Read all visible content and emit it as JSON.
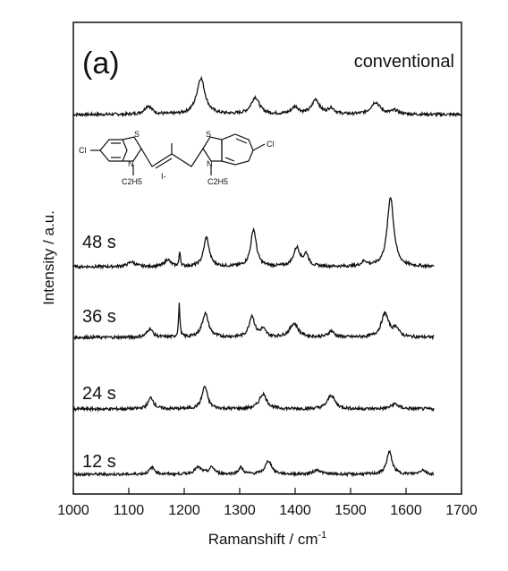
{
  "chart_data": {
    "type": "line",
    "panel_label": "(a)",
    "xlabel": "Ramanshift / cm",
    "xlabel_superscript": "-1",
    "ylabel": "Intensity / a.u.",
    "xlim": [
      1000,
      1700
    ],
    "x_ticks": [
      1000,
      1100,
      1200,
      1300,
      1400,
      1500,
      1600,
      1700
    ],
    "grid": false,
    "structure_labels": [
      "Cl",
      "S",
      "N",
      "C2H5",
      "I-",
      "S",
      "N",
      "C2H5",
      "Cl"
    ],
    "series": [
      {
        "name": "conventional",
        "x_range": [
          1000,
          1700
        ],
        "baseline": 0.0,
        "peaks": [
          [
            1135,
            0.35,
            8
          ],
          [
            1230,
            1.5,
            9
          ],
          [
            1328,
            0.7,
            9
          ],
          [
            1400,
            0.3,
            8
          ],
          [
            1437,
            0.6,
            8
          ],
          [
            1465,
            0.25,
            7
          ],
          [
            1545,
            0.5,
            10
          ],
          [
            1580,
            0.15,
            8
          ]
        ]
      },
      {
        "name": "48 s",
        "x_range": [
          1000,
          1650
        ],
        "baseline": 0.0,
        "peaks": [
          [
            1105,
            0.2,
            8
          ],
          [
            1170,
            0.3,
            6
          ],
          [
            1192,
            0.6,
            1.5
          ],
          [
            1240,
            1.25,
            6
          ],
          [
            1325,
            1.6,
            6
          ],
          [
            1403,
            0.8,
            7
          ],
          [
            1420,
            0.5,
            5
          ],
          [
            1525,
            0.2,
            6
          ],
          [
            1572,
            3.0,
            7
          ]
        ]
      },
      {
        "name": "36 s",
        "x_range": [
          1000,
          1650
        ],
        "baseline": 0.0,
        "peaks": [
          [
            1138,
            0.35,
            6
          ],
          [
            1191,
            1.3,
            1.5
          ],
          [
            1238,
            0.95,
            7
          ],
          [
            1322,
            0.85,
            6
          ],
          [
            1342,
            0.3,
            6
          ],
          [
            1398,
            0.55,
            9
          ],
          [
            1465,
            0.25,
            6
          ],
          [
            1562,
            0.95,
            8
          ],
          [
            1582,
            0.35,
            6
          ]
        ]
      },
      {
        "name": "24 s",
        "x_range": [
          1000,
          1650
        ],
        "baseline": 0.0,
        "peaks": [
          [
            1140,
            0.45,
            6
          ],
          [
            1237,
            0.9,
            6
          ],
          [
            1342,
            0.6,
            8
          ],
          [
            1465,
            0.55,
            8
          ],
          [
            1580,
            0.2,
            8
          ]
        ]
      },
      {
        "name": "12 s",
        "x_range": [
          1000,
          1650
        ],
        "baseline": 0.0,
        "peaks": [
          [
            1142,
            0.3,
            6
          ],
          [
            1225,
            0.3,
            8
          ],
          [
            1250,
            0.3,
            6
          ],
          [
            1302,
            0.3,
            5
          ],
          [
            1352,
            0.6,
            7
          ],
          [
            1440,
            0.2,
            8
          ],
          [
            1570,
            1.0,
            6
          ],
          [
            1630,
            0.2,
            6
          ]
        ]
      }
    ]
  }
}
